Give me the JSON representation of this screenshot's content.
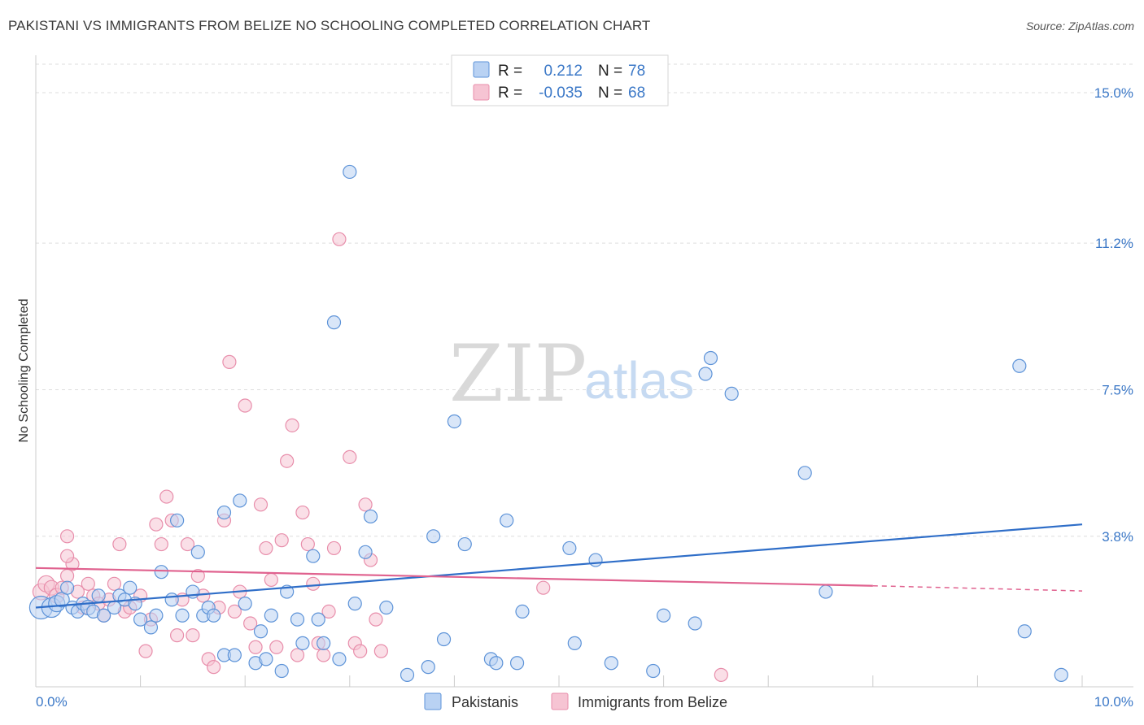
{
  "header": {
    "title": "PAKISTANI VS IMMIGRANTS FROM BELIZE NO SCHOOLING COMPLETED CORRELATION CHART",
    "source": "Source: ZipAtlas.com"
  },
  "watermark": {
    "zip": "ZIP",
    "atlas": "atlas"
  },
  "colors": {
    "blue_fill": "#b9d2f3",
    "blue_stroke": "#5d93d8",
    "blue_line": "#2f6ec8",
    "pink_fill": "#f6c4d3",
    "pink_stroke": "#e88eab",
    "pink_line": "#e0628f",
    "grid": "#dddddd",
    "axis_text": "#3b78c7"
  },
  "legend": {
    "rows": [
      {
        "r_label": "R =",
        "r_value": "0.212",
        "n_label": "N =",
        "n_value": "78"
      },
      {
        "r_label": "R =",
        "r_value": "-0.035",
        "n_label": "N =",
        "n_value": "68"
      }
    ]
  },
  "chart_data": {
    "type": "scatter",
    "title": "PAKISTANI VS IMMIGRANTS FROM BELIZE NO SCHOOLING COMPLETED CORRELATION CHART",
    "xlabel": "",
    "ylabel": "No Schooling Completed",
    "xlim": [
      0,
      10
    ],
    "ylim": [
      0,
      15.8
    ],
    "x_tick_labels": [
      "0.0%",
      "10.0%"
    ],
    "y_ticks": [
      3.8,
      7.5,
      11.2,
      15.0
    ],
    "y_tick_labels": [
      "3.8%",
      "7.5%",
      "11.2%",
      "15.0%"
    ],
    "grid": true,
    "series": [
      {
        "name": "Pakistanis",
        "r": 0.212,
        "n": 78,
        "trend": {
          "x": [
            0,
            10
          ],
          "y": [
            2.0,
            4.1
          ]
        },
        "points": [
          [
            0.05,
            2.0,
            14
          ],
          [
            0.15,
            2.0,
            12
          ],
          [
            0.2,
            2.1,
            10
          ],
          [
            0.25,
            2.2,
            9
          ],
          [
            0.3,
            2.5,
            8
          ],
          [
            0.35,
            2.0,
            8
          ],
          [
            0.4,
            1.9,
            8
          ],
          [
            0.45,
            2.1,
            8
          ],
          [
            0.5,
            2.0,
            9
          ],
          [
            0.55,
            1.9,
            8
          ],
          [
            0.6,
            2.3,
            8
          ],
          [
            0.65,
            1.8,
            8
          ],
          [
            0.75,
            2.0,
            8
          ],
          [
            0.8,
            2.3,
            8
          ],
          [
            0.85,
            2.2,
            8
          ],
          [
            0.9,
            2.5,
            8
          ],
          [
            0.95,
            2.1,
            8
          ],
          [
            1.0,
            1.7,
            8
          ],
          [
            1.1,
            1.5,
            8
          ],
          [
            1.15,
            1.8,
            8
          ],
          [
            1.2,
            2.9,
            8
          ],
          [
            1.3,
            2.2,
            8
          ],
          [
            1.35,
            4.2,
            8
          ],
          [
            1.4,
            1.8,
            8
          ],
          [
            1.5,
            2.4,
            8
          ],
          [
            1.55,
            3.4,
            8
          ],
          [
            1.6,
            1.8,
            8
          ],
          [
            1.65,
            2.0,
            8
          ],
          [
            1.7,
            1.8,
            8
          ],
          [
            1.8,
            0.8,
            8
          ],
          [
            1.8,
            4.4,
            8
          ],
          [
            1.9,
            0.8,
            8
          ],
          [
            1.95,
            4.7,
            8
          ],
          [
            2.0,
            2.1,
            8
          ],
          [
            2.1,
            0.6,
            8
          ],
          [
            2.15,
            1.4,
            8
          ],
          [
            2.2,
            0.7,
            8
          ],
          [
            2.25,
            1.8,
            8
          ],
          [
            2.35,
            0.4,
            8
          ],
          [
            2.4,
            2.4,
            8
          ],
          [
            2.5,
            1.7,
            8
          ],
          [
            2.55,
            1.1,
            8
          ],
          [
            2.65,
            3.3,
            8
          ],
          [
            2.7,
            1.7,
            8
          ],
          [
            2.75,
            1.1,
            8
          ],
          [
            2.85,
            9.2,
            8
          ],
          [
            2.9,
            0.7,
            8
          ],
          [
            3.0,
            13.0,
            8
          ],
          [
            3.05,
            2.1,
            8
          ],
          [
            3.15,
            3.4,
            8
          ],
          [
            3.2,
            4.3,
            8
          ],
          [
            3.35,
            2.0,
            8
          ],
          [
            3.55,
            0.3,
            8
          ],
          [
            3.75,
            0.5,
            8
          ],
          [
            3.8,
            3.8,
            8
          ],
          [
            3.9,
            1.2,
            8
          ],
          [
            4.0,
            6.7,
            8
          ],
          [
            4.1,
            3.6,
            8
          ],
          [
            4.35,
            0.7,
            8
          ],
          [
            4.4,
            0.6,
            8
          ],
          [
            4.5,
            4.2,
            8
          ],
          [
            4.6,
            0.6,
            8
          ],
          [
            4.65,
            1.9,
            8
          ],
          [
            5.1,
            3.5,
            8
          ],
          [
            5.15,
            1.1,
            8
          ],
          [
            5.35,
            3.2,
            8
          ],
          [
            5.5,
            0.6,
            8
          ],
          [
            5.9,
            0.4,
            8
          ],
          [
            6.0,
            1.8,
            8
          ],
          [
            6.3,
            1.6,
            8
          ],
          [
            6.4,
            7.9,
            8
          ],
          [
            6.45,
            8.3,
            8
          ],
          [
            6.65,
            7.4,
            8
          ],
          [
            7.35,
            5.4,
            8
          ],
          [
            7.55,
            2.4,
            8
          ],
          [
            9.4,
            8.1,
            8
          ],
          [
            9.45,
            1.4,
            8
          ],
          [
            9.8,
            0.3,
            8
          ]
        ]
      },
      {
        "name": "Immigrants from Belize",
        "r": -0.035,
        "n": 68,
        "trend": {
          "x": [
            0,
            8
          ],
          "y": [
            3.0,
            2.55
          ]
        },
        "trend_dashed": {
          "x": [
            8,
            10
          ],
          "y": [
            2.55,
            2.42
          ]
        },
        "points": [
          [
            0.05,
            2.4,
            10
          ],
          [
            0.1,
            2.6,
            10
          ],
          [
            0.15,
            2.5,
            9
          ],
          [
            0.2,
            2.3,
            9
          ],
          [
            0.25,
            2.5,
            8
          ],
          [
            0.3,
            2.8,
            8
          ],
          [
            0.35,
            3.1,
            8
          ],
          [
            0.4,
            2.4,
            8
          ],
          [
            0.45,
            2.0,
            8
          ],
          [
            0.5,
            2.6,
            8
          ],
          [
            0.55,
            2.3,
            8
          ],
          [
            0.6,
            2.1,
            8
          ],
          [
            0.65,
            1.8,
            8
          ],
          [
            0.7,
            2.2,
            8
          ],
          [
            0.75,
            2.6,
            8
          ],
          [
            0.8,
            3.6,
            8
          ],
          [
            0.85,
            1.9,
            8
          ],
          [
            0.9,
            2.0,
            8
          ],
          [
            1.0,
            2.3,
            8
          ],
          [
            1.05,
            0.9,
            8
          ],
          [
            1.1,
            1.7,
            8
          ],
          [
            1.15,
            4.1,
            8
          ],
          [
            1.2,
            3.6,
            8
          ],
          [
            1.25,
            4.8,
            8
          ],
          [
            1.3,
            4.2,
            8
          ],
          [
            1.35,
            1.3,
            8
          ],
          [
            1.4,
            2.2,
            8
          ],
          [
            1.45,
            3.6,
            8
          ],
          [
            1.5,
            1.3,
            8
          ],
          [
            1.55,
            2.8,
            8
          ],
          [
            1.6,
            2.3,
            8
          ],
          [
            1.65,
            0.7,
            8
          ],
          [
            1.7,
            0.5,
            8
          ],
          [
            1.75,
            2.0,
            8
          ],
          [
            1.8,
            4.2,
            8
          ],
          [
            1.85,
            8.2,
            8
          ],
          [
            1.9,
            1.9,
            8
          ],
          [
            1.95,
            2.4,
            8
          ],
          [
            2.0,
            7.1,
            8
          ],
          [
            2.05,
            1.6,
            8
          ],
          [
            2.1,
            1.0,
            8
          ],
          [
            2.15,
            4.6,
            8
          ],
          [
            2.2,
            3.5,
            8
          ],
          [
            2.25,
            2.7,
            8
          ],
          [
            2.3,
            1.0,
            8
          ],
          [
            2.35,
            3.7,
            8
          ],
          [
            2.4,
            5.7,
            8
          ],
          [
            2.45,
            6.6,
            8
          ],
          [
            2.5,
            0.8,
            8
          ],
          [
            2.55,
            4.4,
            8
          ],
          [
            2.6,
            3.6,
            8
          ],
          [
            2.65,
            2.6,
            8
          ],
          [
            2.7,
            1.1,
            8
          ],
          [
            2.75,
            0.8,
            8
          ],
          [
            2.8,
            1.9,
            8
          ],
          [
            2.85,
            3.5,
            8
          ],
          [
            2.9,
            11.3,
            8
          ],
          [
            3.0,
            5.8,
            8
          ],
          [
            3.05,
            1.1,
            8
          ],
          [
            3.1,
            0.9,
            8
          ],
          [
            3.15,
            4.6,
            8
          ],
          [
            3.2,
            3.2,
            8
          ],
          [
            3.25,
            1.7,
            8
          ],
          [
            3.3,
            0.9,
            8
          ],
          [
            0.3,
            3.8,
            8
          ],
          [
            0.3,
            3.3,
            8
          ],
          [
            4.85,
            2.5,
            8
          ],
          [
            6.55,
            0.3,
            8
          ]
        ]
      }
    ]
  }
}
